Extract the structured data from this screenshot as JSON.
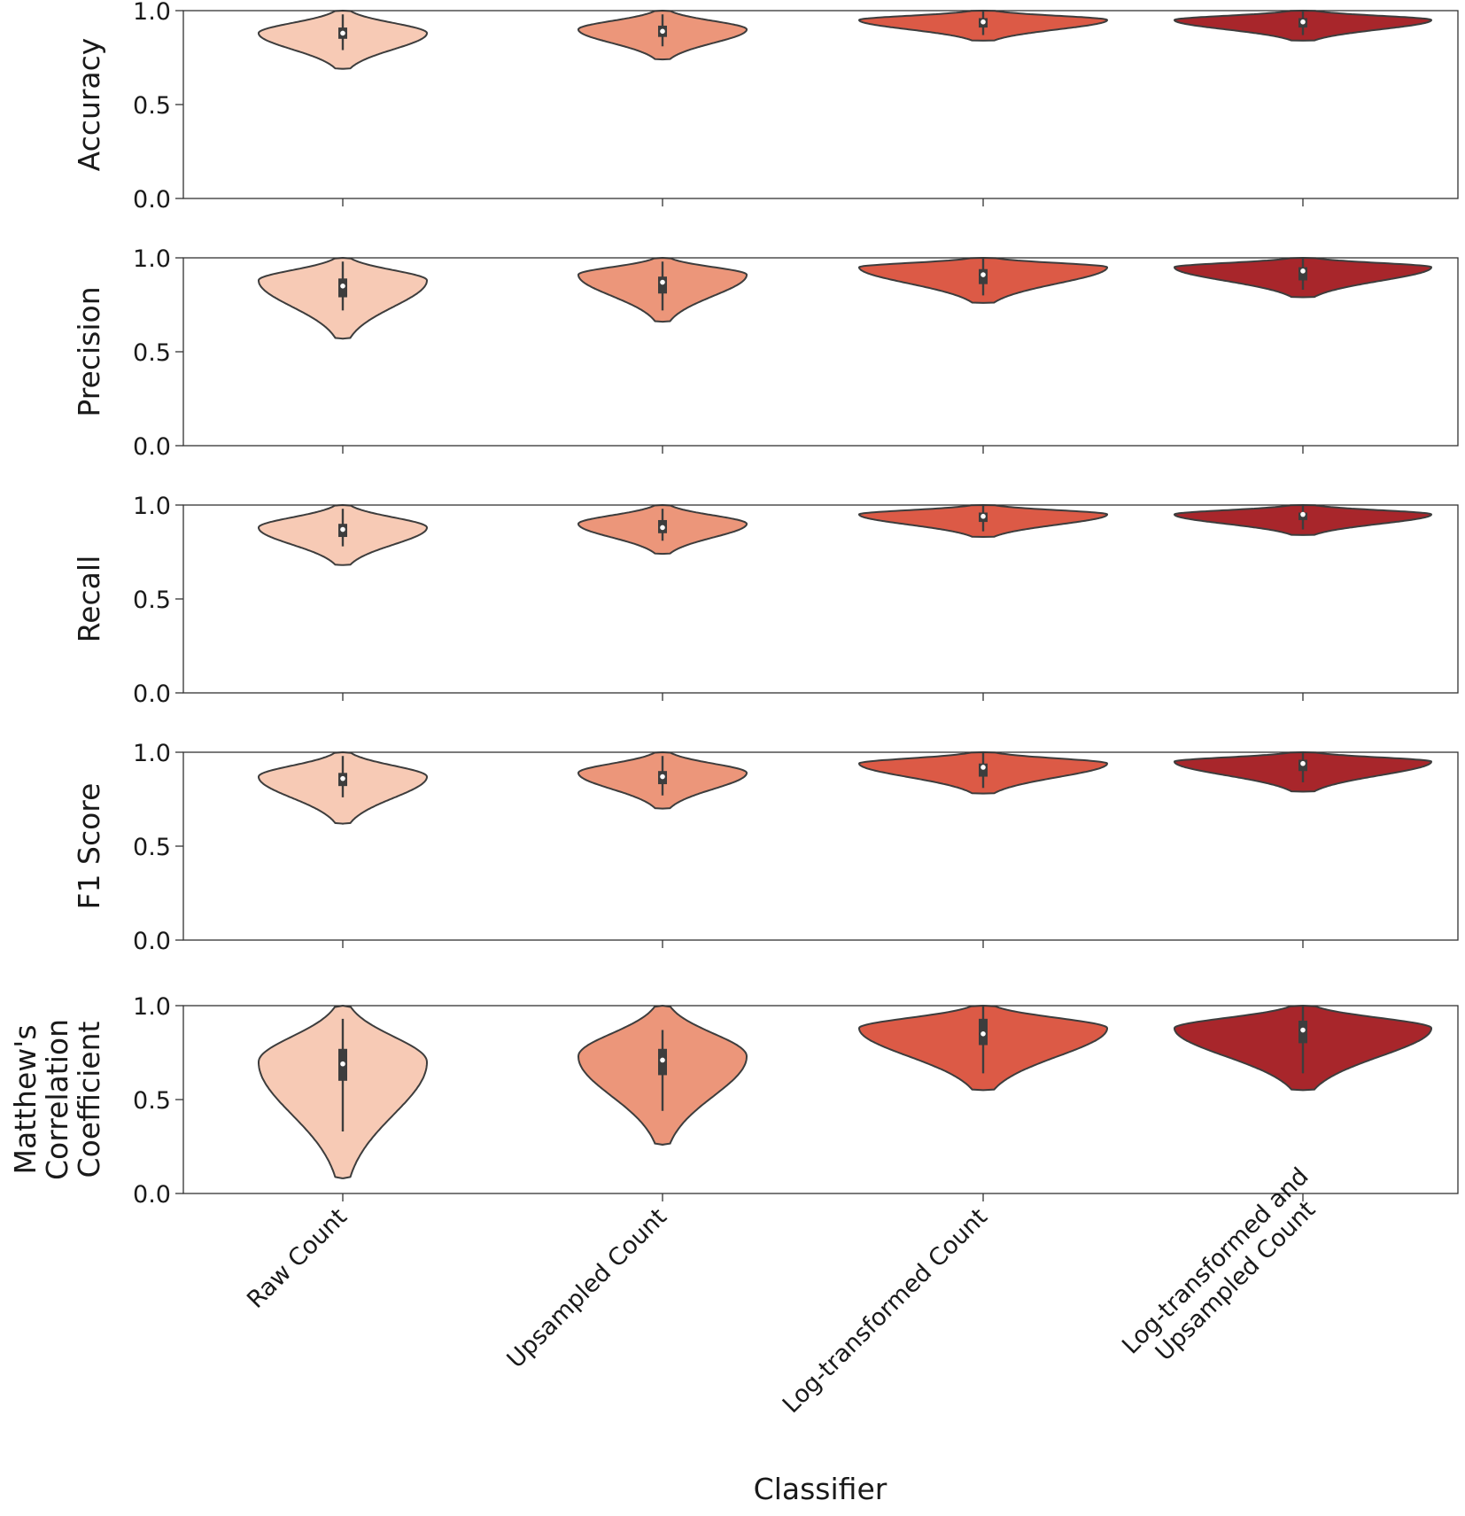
{
  "chart_data": {
    "type": "violin",
    "xlabel": "Classifier",
    "categories": [
      [
        "Raw Count"
      ],
      [
        "Upsampled Count"
      ],
      [
        "Log-transformed Count"
      ],
      [
        "Log-transformed and",
        "Upsampled Count"
      ]
    ],
    "colors": [
      "#f7cab5",
      "#ec967a",
      "#dc5a46",
      "#a8262b"
    ],
    "ylim": [
      0,
      1
    ],
    "yticks": [
      "0.0",
      "0.5",
      "1.0"
    ],
    "panels": [
      {
        "ylabel": [
          "Accuracy"
        ],
        "series": [
          {
            "min": 0.69,
            "max": 1.0,
            "mode": 0.88,
            "q1": 0.85,
            "median": 0.88,
            "q3": 0.91,
            "whisker_low": 0.79,
            "whisker_high": 0.98
          },
          {
            "min": 0.74,
            "max": 1.0,
            "mode": 0.9,
            "q1": 0.86,
            "median": 0.89,
            "q3": 0.92,
            "whisker_low": 0.81,
            "whisker_high": 0.98
          },
          {
            "min": 0.84,
            "max": 1.0,
            "mode": 0.95,
            "q1": 0.91,
            "median": 0.94,
            "q3": 0.96,
            "whisker_low": 0.87,
            "whisker_high": 1.0
          },
          {
            "min": 0.84,
            "max": 1.0,
            "mode": 0.95,
            "q1": 0.91,
            "median": 0.94,
            "q3": 0.96,
            "whisker_low": 0.87,
            "whisker_high": 1.0
          }
        ]
      },
      {
        "ylabel": [
          "Precision"
        ],
        "series": [
          {
            "min": 0.57,
            "max": 1.0,
            "mode": 0.88,
            "q1": 0.79,
            "median": 0.85,
            "q3": 0.89,
            "whisker_low": 0.72,
            "whisker_high": 0.98
          },
          {
            "min": 0.66,
            "max": 1.0,
            "mode": 0.91,
            "q1": 0.81,
            "median": 0.87,
            "q3": 0.9,
            "whisker_low": 0.72,
            "whisker_high": 0.98
          },
          {
            "min": 0.76,
            "max": 1.0,
            "mode": 0.95,
            "q1": 0.86,
            "median": 0.91,
            "q3": 0.94,
            "whisker_low": 0.8,
            "whisker_high": 1.0
          },
          {
            "min": 0.79,
            "max": 1.0,
            "mode": 0.95,
            "q1": 0.88,
            "median": 0.93,
            "q3": 0.95,
            "whisker_low": 0.83,
            "whisker_high": 1.0
          }
        ]
      },
      {
        "ylabel": [
          "Recall"
        ],
        "series": [
          {
            "min": 0.68,
            "max": 1.0,
            "mode": 0.88,
            "q1": 0.83,
            "median": 0.87,
            "q3": 0.9,
            "whisker_low": 0.78,
            "whisker_high": 0.98
          },
          {
            "min": 0.74,
            "max": 1.0,
            "mode": 0.9,
            "q1": 0.85,
            "median": 0.88,
            "q3": 0.92,
            "whisker_low": 0.81,
            "whisker_high": 0.98
          },
          {
            "min": 0.83,
            "max": 1.0,
            "mode": 0.95,
            "q1": 0.91,
            "median": 0.94,
            "q3": 0.96,
            "whisker_low": 0.86,
            "whisker_high": 1.0
          },
          {
            "min": 0.84,
            "max": 1.0,
            "mode": 0.95,
            "q1": 0.92,
            "median": 0.95,
            "q3": 0.96,
            "whisker_low": 0.87,
            "whisker_high": 1.0
          }
        ]
      },
      {
        "ylabel": [
          "F1 Score"
        ],
        "series": [
          {
            "min": 0.62,
            "max": 1.0,
            "mode": 0.87,
            "q1": 0.82,
            "median": 0.86,
            "q3": 0.89,
            "whisker_low": 0.76,
            "whisker_high": 0.98
          },
          {
            "min": 0.7,
            "max": 1.0,
            "mode": 0.89,
            "q1": 0.83,
            "median": 0.87,
            "q3": 0.9,
            "whisker_low": 0.77,
            "whisker_high": 0.98
          },
          {
            "min": 0.78,
            "max": 1.0,
            "mode": 0.94,
            "q1": 0.87,
            "median": 0.92,
            "q3": 0.94,
            "whisker_low": 0.81,
            "whisker_high": 1.0
          },
          {
            "min": 0.79,
            "max": 1.0,
            "mode": 0.95,
            "q1": 0.9,
            "median": 0.94,
            "q3": 0.96,
            "whisker_low": 0.84,
            "whisker_high": 1.0
          }
        ]
      },
      {
        "ylabel": [
          "Matthew's",
          "Correlation",
          "Coefficient"
        ],
        "series": [
          {
            "min": 0.08,
            "max": 1.0,
            "mode": 0.7,
            "q1": 0.6,
            "median": 0.69,
            "q3": 0.77,
            "whisker_low": 0.33,
            "whisker_high": 0.93
          },
          {
            "min": 0.26,
            "max": 1.0,
            "mode": 0.73,
            "q1": 0.63,
            "median": 0.71,
            "q3": 0.77,
            "whisker_low": 0.44,
            "whisker_high": 0.87
          },
          {
            "min": 0.55,
            "max": 1.0,
            "mode": 0.88,
            "q1": 0.79,
            "median": 0.85,
            "q3": 0.93,
            "whisker_low": 0.64,
            "whisker_high": 1.0
          },
          {
            "min": 0.55,
            "max": 1.0,
            "mode": 0.88,
            "q1": 0.8,
            "median": 0.87,
            "q3": 0.92,
            "whisker_low": 0.64,
            "whisker_high": 1.0
          }
        ]
      }
    ]
  }
}
